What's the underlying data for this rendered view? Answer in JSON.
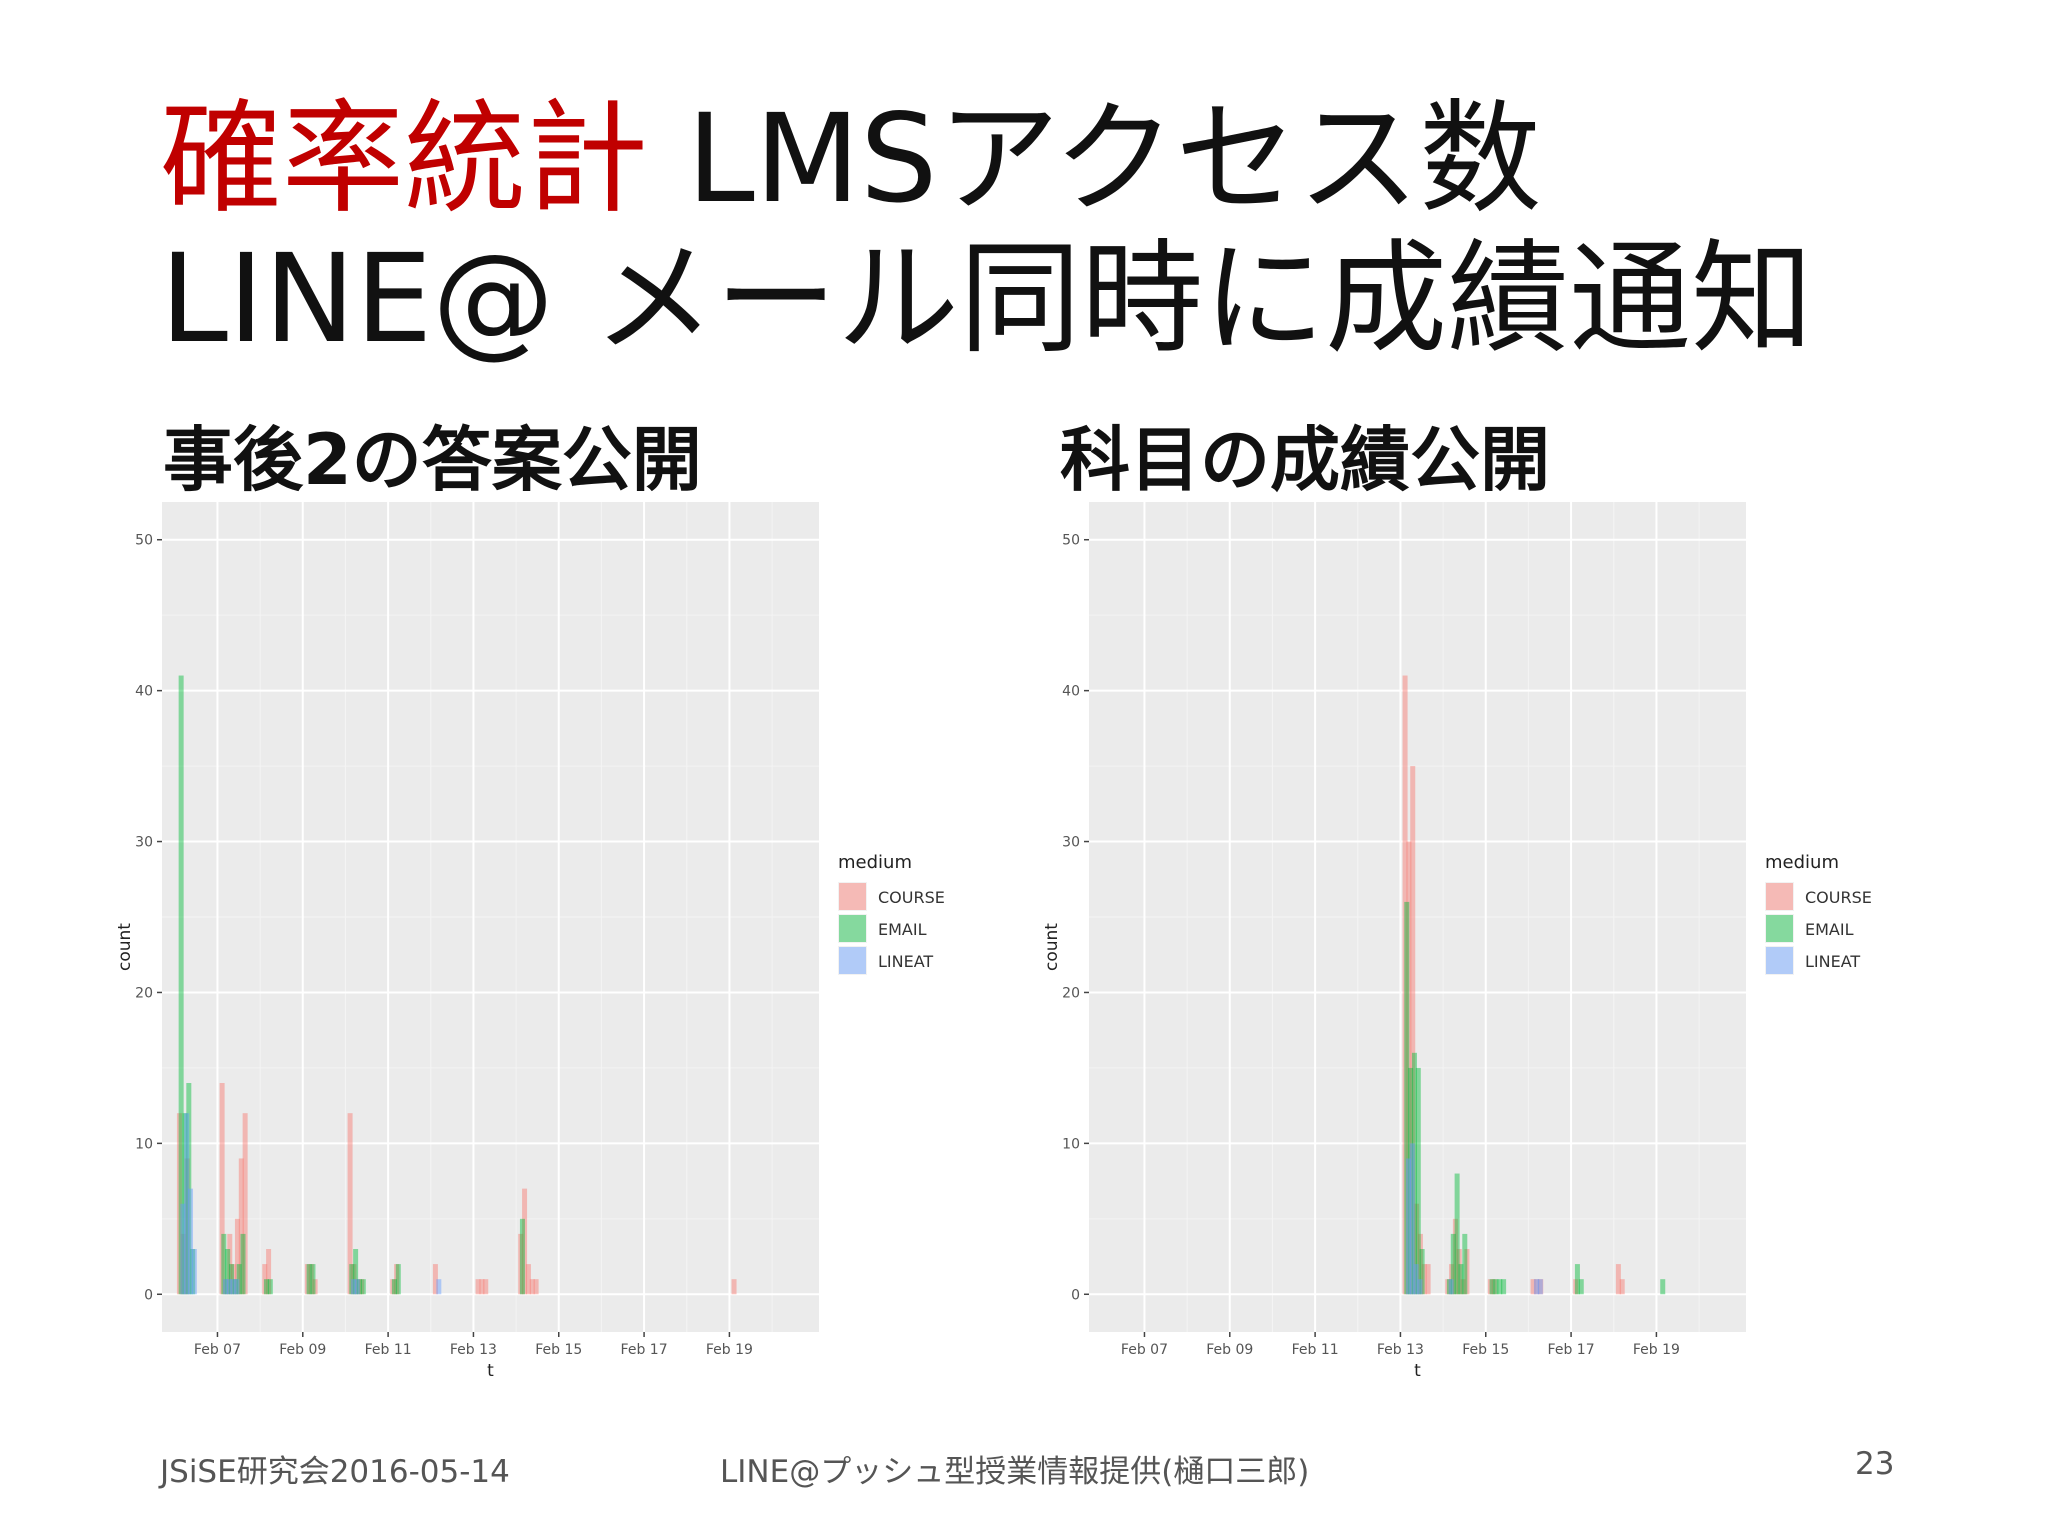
{
  "slide": {
    "title_line1_accent": "確率統計",
    "title_line1_rest": " LMSアクセス数",
    "title_line2": "LINE@ メール同時に成績通知",
    "subtitle_left": "事後2の答案公開",
    "subtitle_right": "科目の成績公開",
    "footer_left": "JSiSE研究会2016-05-14",
    "footer_center": "LINE@プッシュ型授業情報提供(樋口三郎)",
    "footer_page": "23"
  },
  "colors": {
    "accent": "#c00000",
    "panel_bg": "#ebebeb",
    "gridline": "#ffffff",
    "COURSE": "#f8766d",
    "EMAIL": "#00ba38",
    "LINEAT": "#619cff"
  },
  "chart_data": [
    {
      "type": "bar",
      "subtype": "histogram",
      "xlabel": "t",
      "ylabel": "count",
      "x_ticks": [
        "Feb 07",
        "Feb 09",
        "Feb 11",
        "Feb 13",
        "Feb 15",
        "Feb 17",
        "Feb 19"
      ],
      "xlim_days": [
        5.7,
        21.1
      ],
      "ylim": [
        -2.5,
        52.5
      ],
      "y_ticks": [
        0,
        10,
        20,
        30,
        40,
        50
      ],
      "legend": {
        "title": "medium",
        "position": "right",
        "entries": [
          "COURSE",
          "EMAIL",
          "LINEAT"
        ]
      },
      "series": [
        {
          "name": "COURSE",
          "x": [
            "Feb 06",
            "Feb 06",
            "Feb 06",
            "Feb 07",
            "Feb 07",
            "Feb 07",
            "Feb 07",
            "Feb 07",
            "Feb 07",
            "Feb 07",
            "Feb 08",
            "Feb 08",
            "Feb 09",
            "Feb 09",
            "Feb 09",
            "Feb 10",
            "Feb 10",
            "Feb 10",
            "Feb 10",
            "Feb 11",
            "Feb 11",
            "Feb 12",
            "Feb 13",
            "Feb 13",
            "Feb 13",
            "Feb 14",
            "Feb 14",
            "Feb 14",
            "Feb 14",
            "Feb 14",
            "Feb 19"
          ],
          "y": [
            12,
            4,
            9,
            14,
            1,
            4,
            2,
            5,
            9,
            12,
            2,
            3,
            2,
            2,
            1,
            12,
            2,
            1,
            1,
            1,
            2,
            2,
            1,
            1,
            1,
            4,
            7,
            2,
            1,
            1,
            1
          ]
        },
        {
          "name": "EMAIL",
          "x": [
            "Feb 06",
            "Feb 06",
            "Feb 06",
            "Feb 06",
            "Feb 07",
            "Feb 07",
            "Feb 07",
            "Feb 07",
            "Feb 07",
            "Feb 07",
            "Feb 08",
            "Feb 08",
            "Feb 09",
            "Feb 09",
            "Feb 10",
            "Feb 10",
            "Feb 10",
            "Feb 10",
            "Feb 11",
            "Feb 11",
            "Feb 14"
          ],
          "y": [
            41,
            12,
            14,
            3,
            4,
            3,
            2,
            1,
            2,
            4,
            1,
            1,
            2,
            2,
            2,
            3,
            1,
            1,
            1,
            2,
            5
          ]
        },
        {
          "name": "LINEAT",
          "x": [
            "Feb 06",
            "Feb 06",
            "Feb 06",
            "Feb 06",
            "Feb 07",
            "Feb 07",
            "Feb 07",
            "Feb 07",
            "Feb 10",
            "Feb 10",
            "Feb 12"
          ],
          "y": [
            6,
            12,
            7,
            3,
            1,
            1,
            1,
            1,
            1,
            1,
            1
          ]
        }
      ]
    },
    {
      "type": "bar",
      "subtype": "histogram",
      "xlabel": "t",
      "ylabel": "count",
      "x_ticks": [
        "Feb 07",
        "Feb 09",
        "Feb 11",
        "Feb 13",
        "Feb 15",
        "Feb 17",
        "Feb 19"
      ],
      "xlim_days": [
        5.7,
        21.1
      ],
      "ylim": [
        -2.5,
        52.5
      ],
      "y_ticks": [
        0,
        10,
        20,
        30,
        40,
        50
      ],
      "legend": {
        "title": "medium",
        "position": "right",
        "entries": [
          "COURSE",
          "EMAIL",
          "LINEAT"
        ]
      },
      "series": [
        {
          "name": "COURSE",
          "x": [
            "Feb 13",
            "Feb 13",
            "Feb 13",
            "Feb 13",
            "Feb 13",
            "Feb 13",
            "Feb 13",
            "Feb 14",
            "Feb 14",
            "Feb 14",
            "Feb 14",
            "Feb 14",
            "Feb 14",
            "Feb 15",
            "Feb 15",
            "Feb 16",
            "Feb 16",
            "Feb 16",
            "Feb 17",
            "Feb 18",
            "Feb 18"
          ],
          "y": [
            41,
            30,
            35,
            6,
            4,
            2,
            2,
            1,
            2,
            5,
            3,
            1,
            3,
            1,
            1,
            1,
            1,
            1,
            1,
            2,
            1
          ]
        },
        {
          "name": "EMAIL",
          "x": [
            "Feb 13",
            "Feb 13",
            "Feb 13",
            "Feb 13",
            "Feb 13",
            "Feb 14",
            "Feb 14",
            "Feb 14",
            "Feb 14",
            "Feb 14",
            "Feb 15",
            "Feb 15",
            "Feb 15",
            "Feb 15",
            "Feb 17",
            "Feb 17",
            "Feb 19"
          ],
          "y": [
            26,
            15,
            16,
            15,
            3,
            1,
            4,
            8,
            2,
            4,
            1,
            1,
            1,
            1,
            2,
            1,
            1
          ]
        },
        {
          "name": "LINEAT",
          "x": [
            "Feb 13",
            "Feb 13",
            "Feb 13",
            "Feb 13",
            "Feb 14",
            "Feb 16",
            "Feb 16"
          ],
          "y": [
            9,
            10,
            2,
            1,
            1,
            1,
            1
          ]
        }
      ]
    }
  ]
}
